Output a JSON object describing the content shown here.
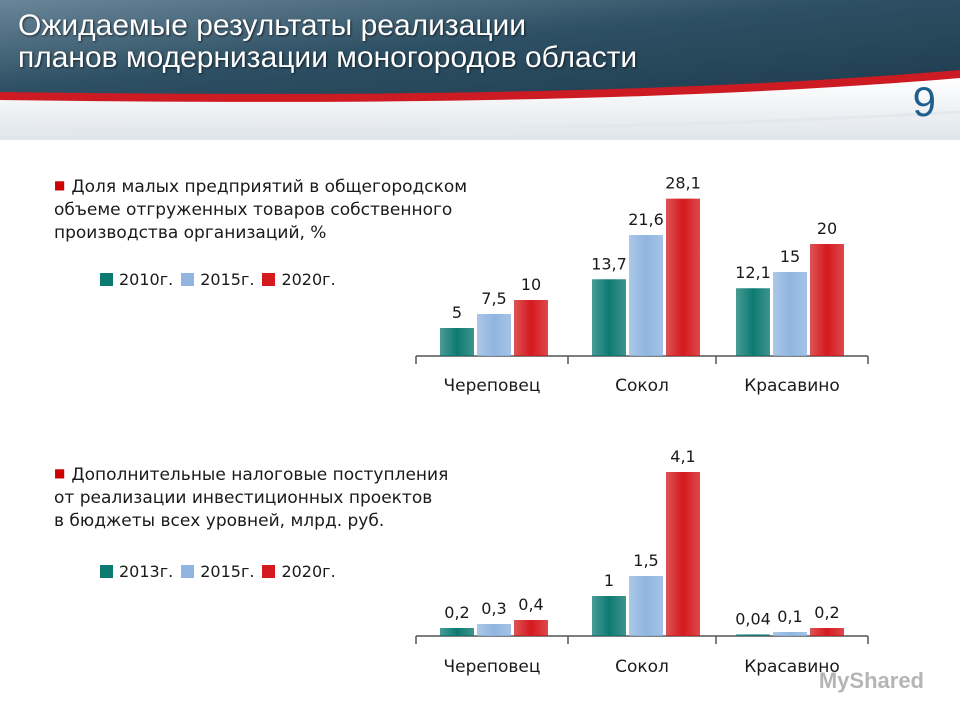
{
  "slide": {
    "title_line1": "Ожидаемые результаты реализации",
    "title_line2": "планов модернизации моногородов области",
    "page_number": "9",
    "watermark": "MyShared"
  },
  "colors": {
    "teal": "#0d7a72",
    "blue": "#8fb5e0",
    "red": "#d41a1f",
    "header_dark": "#27495e",
    "header_red": "#cc1b22"
  },
  "chart_data": [
    {
      "type": "bar",
      "caption": "Доля малых предприятий в общегородском объеме отгруженных товаров собственного производства организаций, %",
      "caption_lines": [
        "Доля малых предприятий в общегородском",
        "объеме отгруженных товаров собственного",
        "производства организаций, %"
      ],
      "categories": [
        "Череповец",
        "Сокол",
        "Красавино"
      ],
      "series": [
        {
          "name": "2010г.",
          "values": [
            5,
            13.7,
            12.1
          ],
          "labels": [
            "5",
            "13,7",
            "12,1"
          ],
          "color": "teal"
        },
        {
          "name": "2015г.",
          "values": [
            7.5,
            21.6,
            15
          ],
          "labels": [
            "7,5",
            "21,6",
            "15"
          ],
          "color": "blue"
        },
        {
          "name": "2020г.",
          "values": [
            10,
            28.1,
            20
          ],
          "labels": [
            "10",
            "28,1",
            "20"
          ],
          "color": "red"
        }
      ],
      "ylim": [
        0,
        30
      ],
      "legend_position": "left"
    },
    {
      "type": "bar",
      "caption": "Дополнительные налоговые поступления от реализации инвестиционных проектов в бюджеты всех уровней, млрд. руб.",
      "caption_lines": [
        "Дополнительные налоговые поступления",
        "от реализации инвестиционных проектов",
        "в бюджеты всех уровней, млрд. руб."
      ],
      "categories": [
        "Череповец",
        "Сокол",
        "Красавино"
      ],
      "series": [
        {
          "name": "2013г.",
          "values": [
            0.2,
            1,
            0.04
          ],
          "labels": [
            "0,2",
            "1",
            "0,04"
          ],
          "color": "teal"
        },
        {
          "name": "2015г.",
          "values": [
            0.3,
            1.5,
            0.1
          ],
          "labels": [
            "0,3",
            "1,5",
            "0,1"
          ],
          "color": "blue"
        },
        {
          "name": "2020г.",
          "values": [
            0.4,
            4.1,
            0.2
          ],
          "labels": [
            "0,4",
            "4,1",
            "0,2"
          ],
          "color": "red"
        }
      ],
      "ylim": [
        0,
        4.4
      ],
      "legend_position": "left"
    }
  ]
}
